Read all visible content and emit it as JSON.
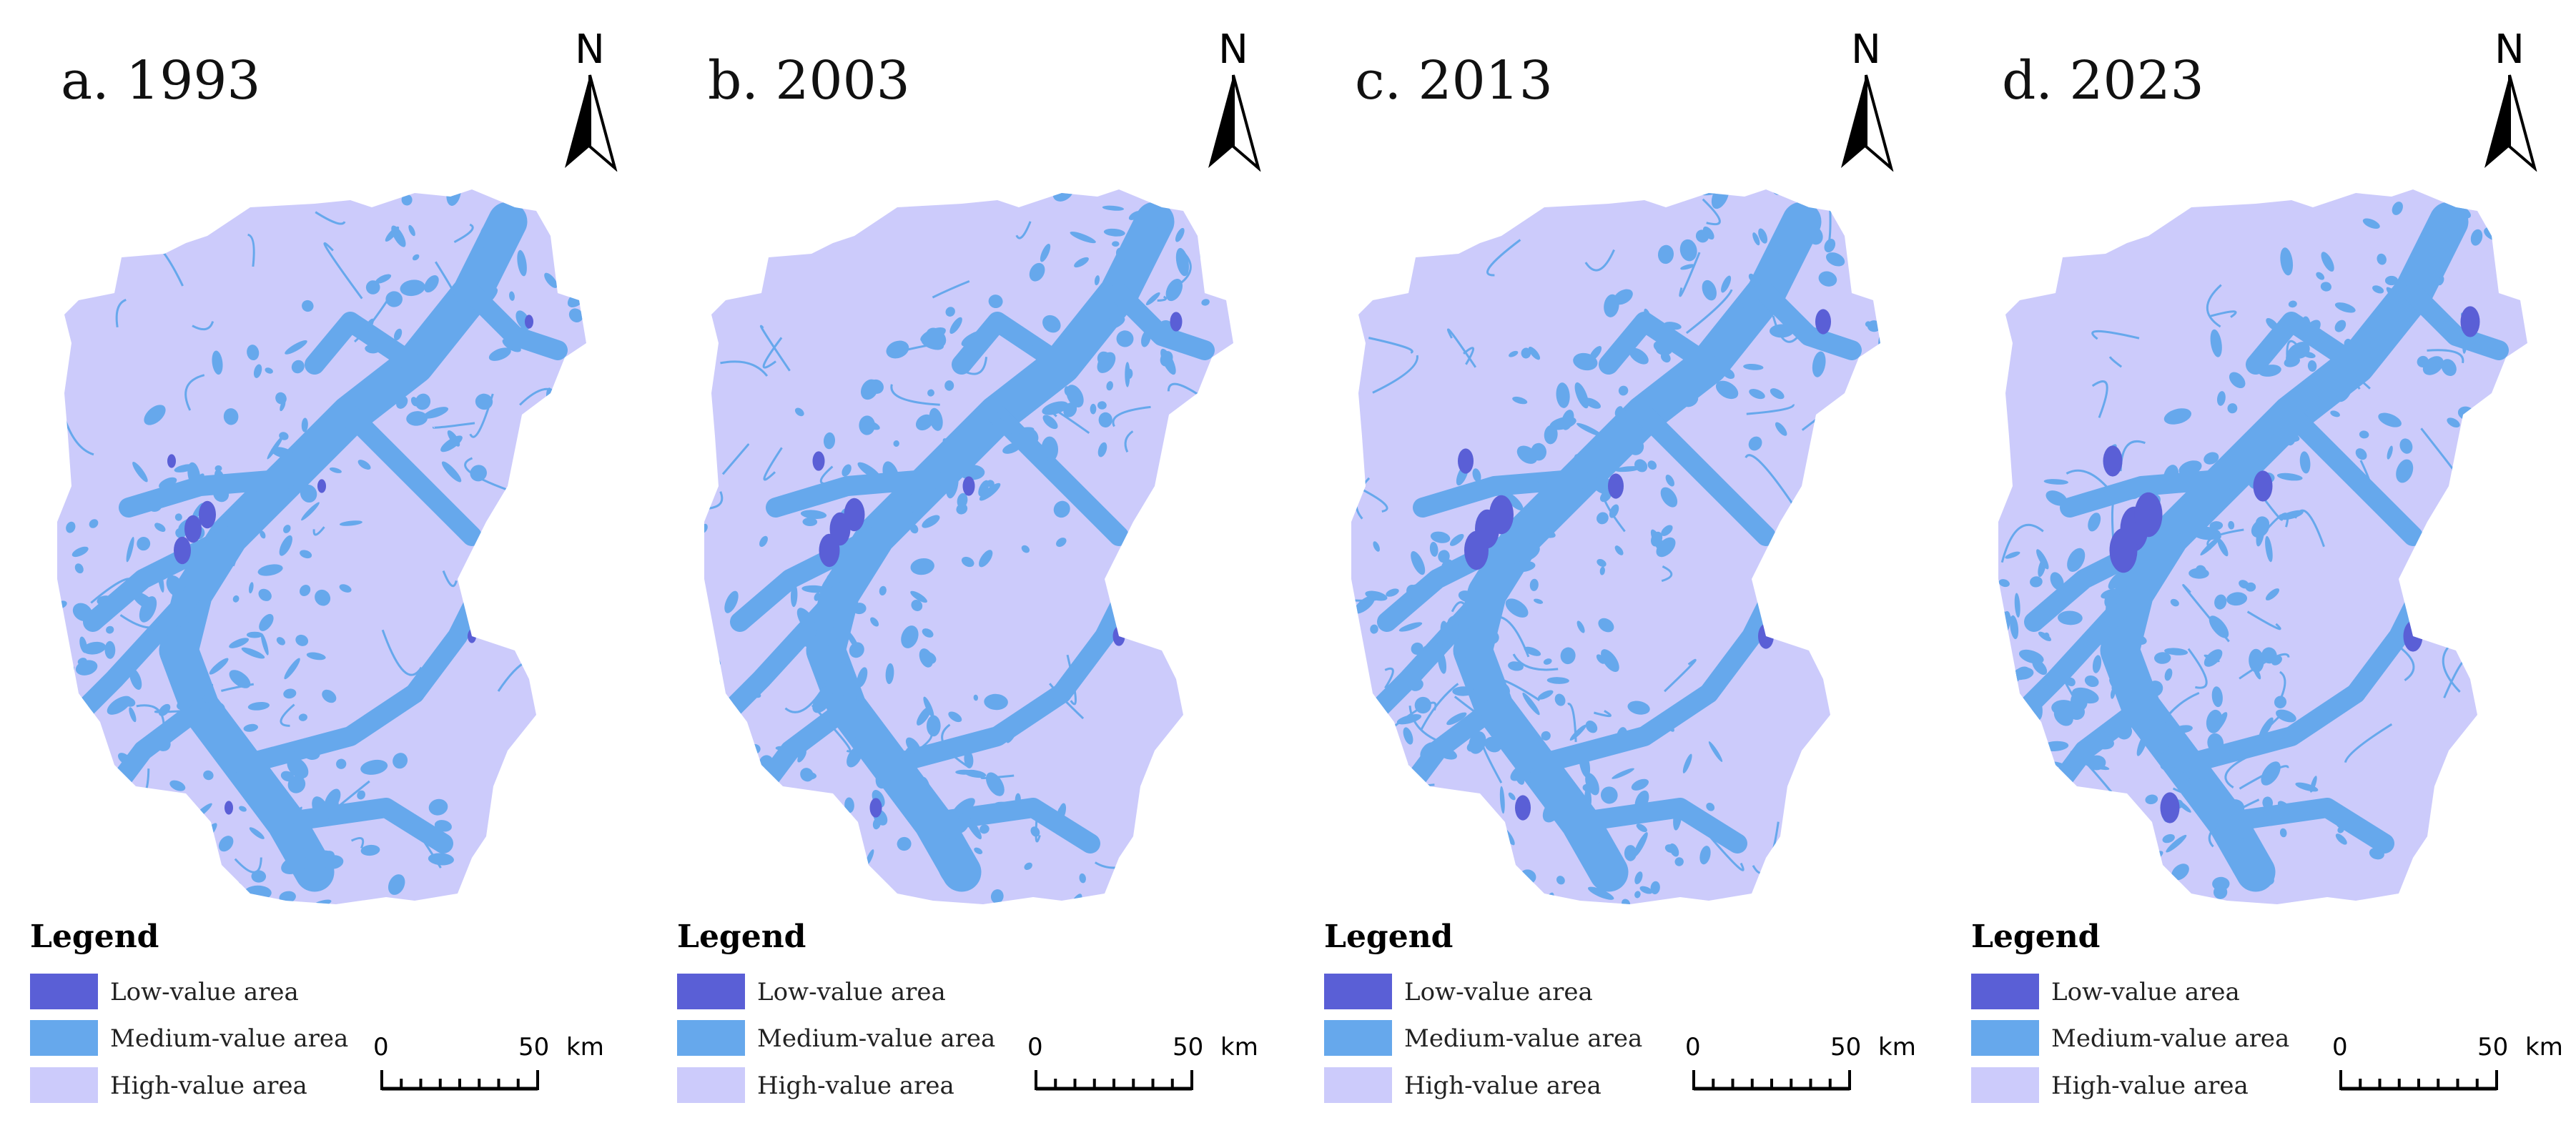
{
  "panels": [
    {
      "title": "a. 1993"
    },
    {
      "title": "b. 2003"
    },
    {
      "title": "c. 2013"
    },
    {
      "title": "d. 2023"
    }
  ],
  "north_label": "N",
  "legend": {
    "title": "Legend",
    "items": [
      {
        "label": "Low-value area",
        "color": "#5A5FD6"
      },
      {
        "label": "Medium-value area",
        "color": "#66A8EC"
      },
      {
        "label": "High-value area",
        "color": "#CCCBFB"
      }
    ]
  },
  "scale": {
    "start": "0",
    "end": "50",
    "unit": "km"
  }
}
